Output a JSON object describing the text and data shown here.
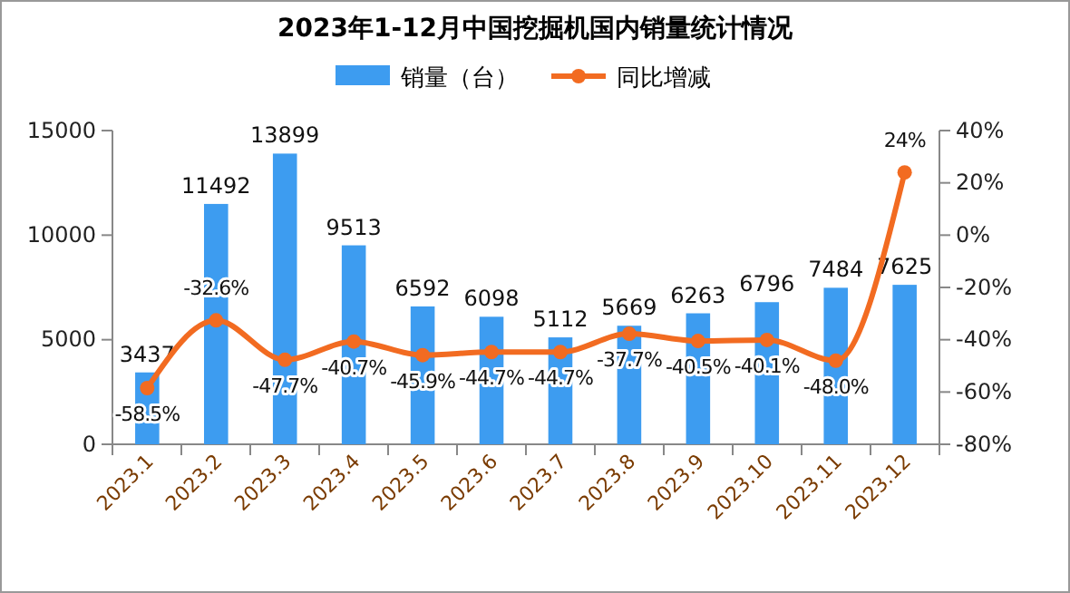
{
  "chart_data": {
    "type": "bar",
    "title": "2023年1-12月中国挖掘机国内销量统计情况",
    "categories": [
      "2023.1",
      "2023.2",
      "2023.3",
      "2023.4",
      "2023.5",
      "2023.6",
      "2023.7",
      "2023.8",
      "2023.9",
      "2023.10",
      "2023.11",
      "2023.12"
    ],
    "series": [
      {
        "name": "销量（台）",
        "color": "#3d9cf0",
        "values": [
          3437,
          11492,
          13899,
          9513,
          6592,
          6098,
          5112,
          5669,
          6263,
          6796,
          7484,
          7625
        ],
        "value_labels": [
          "3437",
          "11492",
          "13899",
          "9513",
          "6592",
          "6098",
          "5112",
          "5669",
          "6263",
          "6796",
          "7484",
          "7625"
        ]
      },
      {
        "name": "同比增减",
        "type": "line",
        "axis": "y2",
        "color": "#f26b21",
        "values": [
          -58.5,
          -32.6,
          -47.7,
          -40.7,
          -45.9,
          -44.7,
          -44.7,
          -37.7,
          -40.5,
          -40.1,
          -48.0,
          24
        ],
        "value_labels": [
          "-58.5%",
          "-32.6%",
          "-47.7%",
          "-40.7%",
          "-45.9%",
          "-44.7%",
          "-44.7%",
          "-37.7%",
          "-40.5%",
          "-40.1%",
          "-48.0%",
          "24%"
        ]
      }
    ],
    "ylim": [
      0,
      15000
    ],
    "yticks": [
      0,
      5000,
      10000,
      15000
    ],
    "y2lim": [
      -80,
      40
    ],
    "y2ticks": [
      {
        "value": -80,
        "label": "-80%"
      },
      {
        "value": -60,
        "label": "-60%"
      },
      {
        "value": -40,
        "label": "-40%"
      },
      {
        "value": -20,
        "label": "-20%"
      },
      {
        "value": 0,
        "label": "0%"
      },
      {
        "value": 20,
        "label": "20%"
      },
      {
        "value": 40,
        "label": "40%"
      }
    ],
    "legend": "top",
    "marker": "circle",
    "grid": false
  }
}
